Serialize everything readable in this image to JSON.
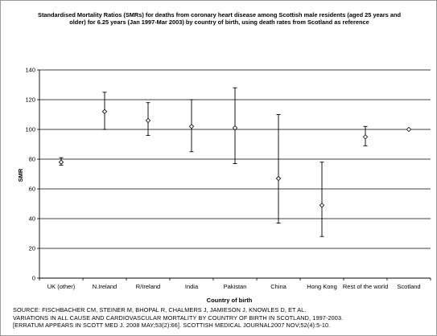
{
  "chart_data": {
    "type": "scatter",
    "title": "Standardised Mortality Ratios (SMRs) for deaths from coronary heart disease among Scottish male residents (aged 25 years and older) for 6.25 years (Jan 1997-Mar 2003) by country of birth, using death rates from Scotland as reference",
    "xlabel": "Country of birth",
    "ylabel": "SMR",
    "ylim": [
      0,
      140
    ],
    "yticks": [
      "0",
      "20",
      "40",
      "60",
      "80",
      "100",
      "120",
      "140"
    ],
    "grid": true,
    "legend": "none",
    "marker": "open-diamond",
    "error_bars": true,
    "categories": [
      "UK (other)",
      "N.Ireland",
      "R/Ireland",
      "India",
      "Pakistan",
      "China",
      "Hong Kong",
      "Rest of the world",
      "Scotland"
    ],
    "values": [
      78,
      112,
      106,
      102,
      101,
      67,
      49,
      95,
      100
    ],
    "lower": [
      76,
      100,
      96,
      85,
      77,
      37,
      28,
      89,
      100
    ],
    "upper": [
      81,
      125,
      118,
      120,
      128,
      110,
      78,
      102,
      100
    ]
  },
  "source": {
    "lines": [
      "SOURCE: FISCHBACHER CM, STEINER M, BHOPAL R, CHALMERS J, JAMIESON J, KNOWLES D, ET AL.",
      "VARIATIONS IN ALL CAUSE AND CARDIOVASCULAR MORTALITY BY COUNTRY OF BIRTH IN SCOTLAND, 1997-2003.",
      "[ERRATUM APPEARS IN SCOTT MED J. 2008 MAY;53(2):66]. SCOTTISH MEDICAL JOURNAL2007 NOV;52(4):5-10."
    ]
  },
  "colors": {
    "grid": "#000000",
    "axis": "#000000",
    "marker_fill": "#ffffff",
    "marker_stroke": "#000000",
    "frame": "#9a9a9a"
  }
}
